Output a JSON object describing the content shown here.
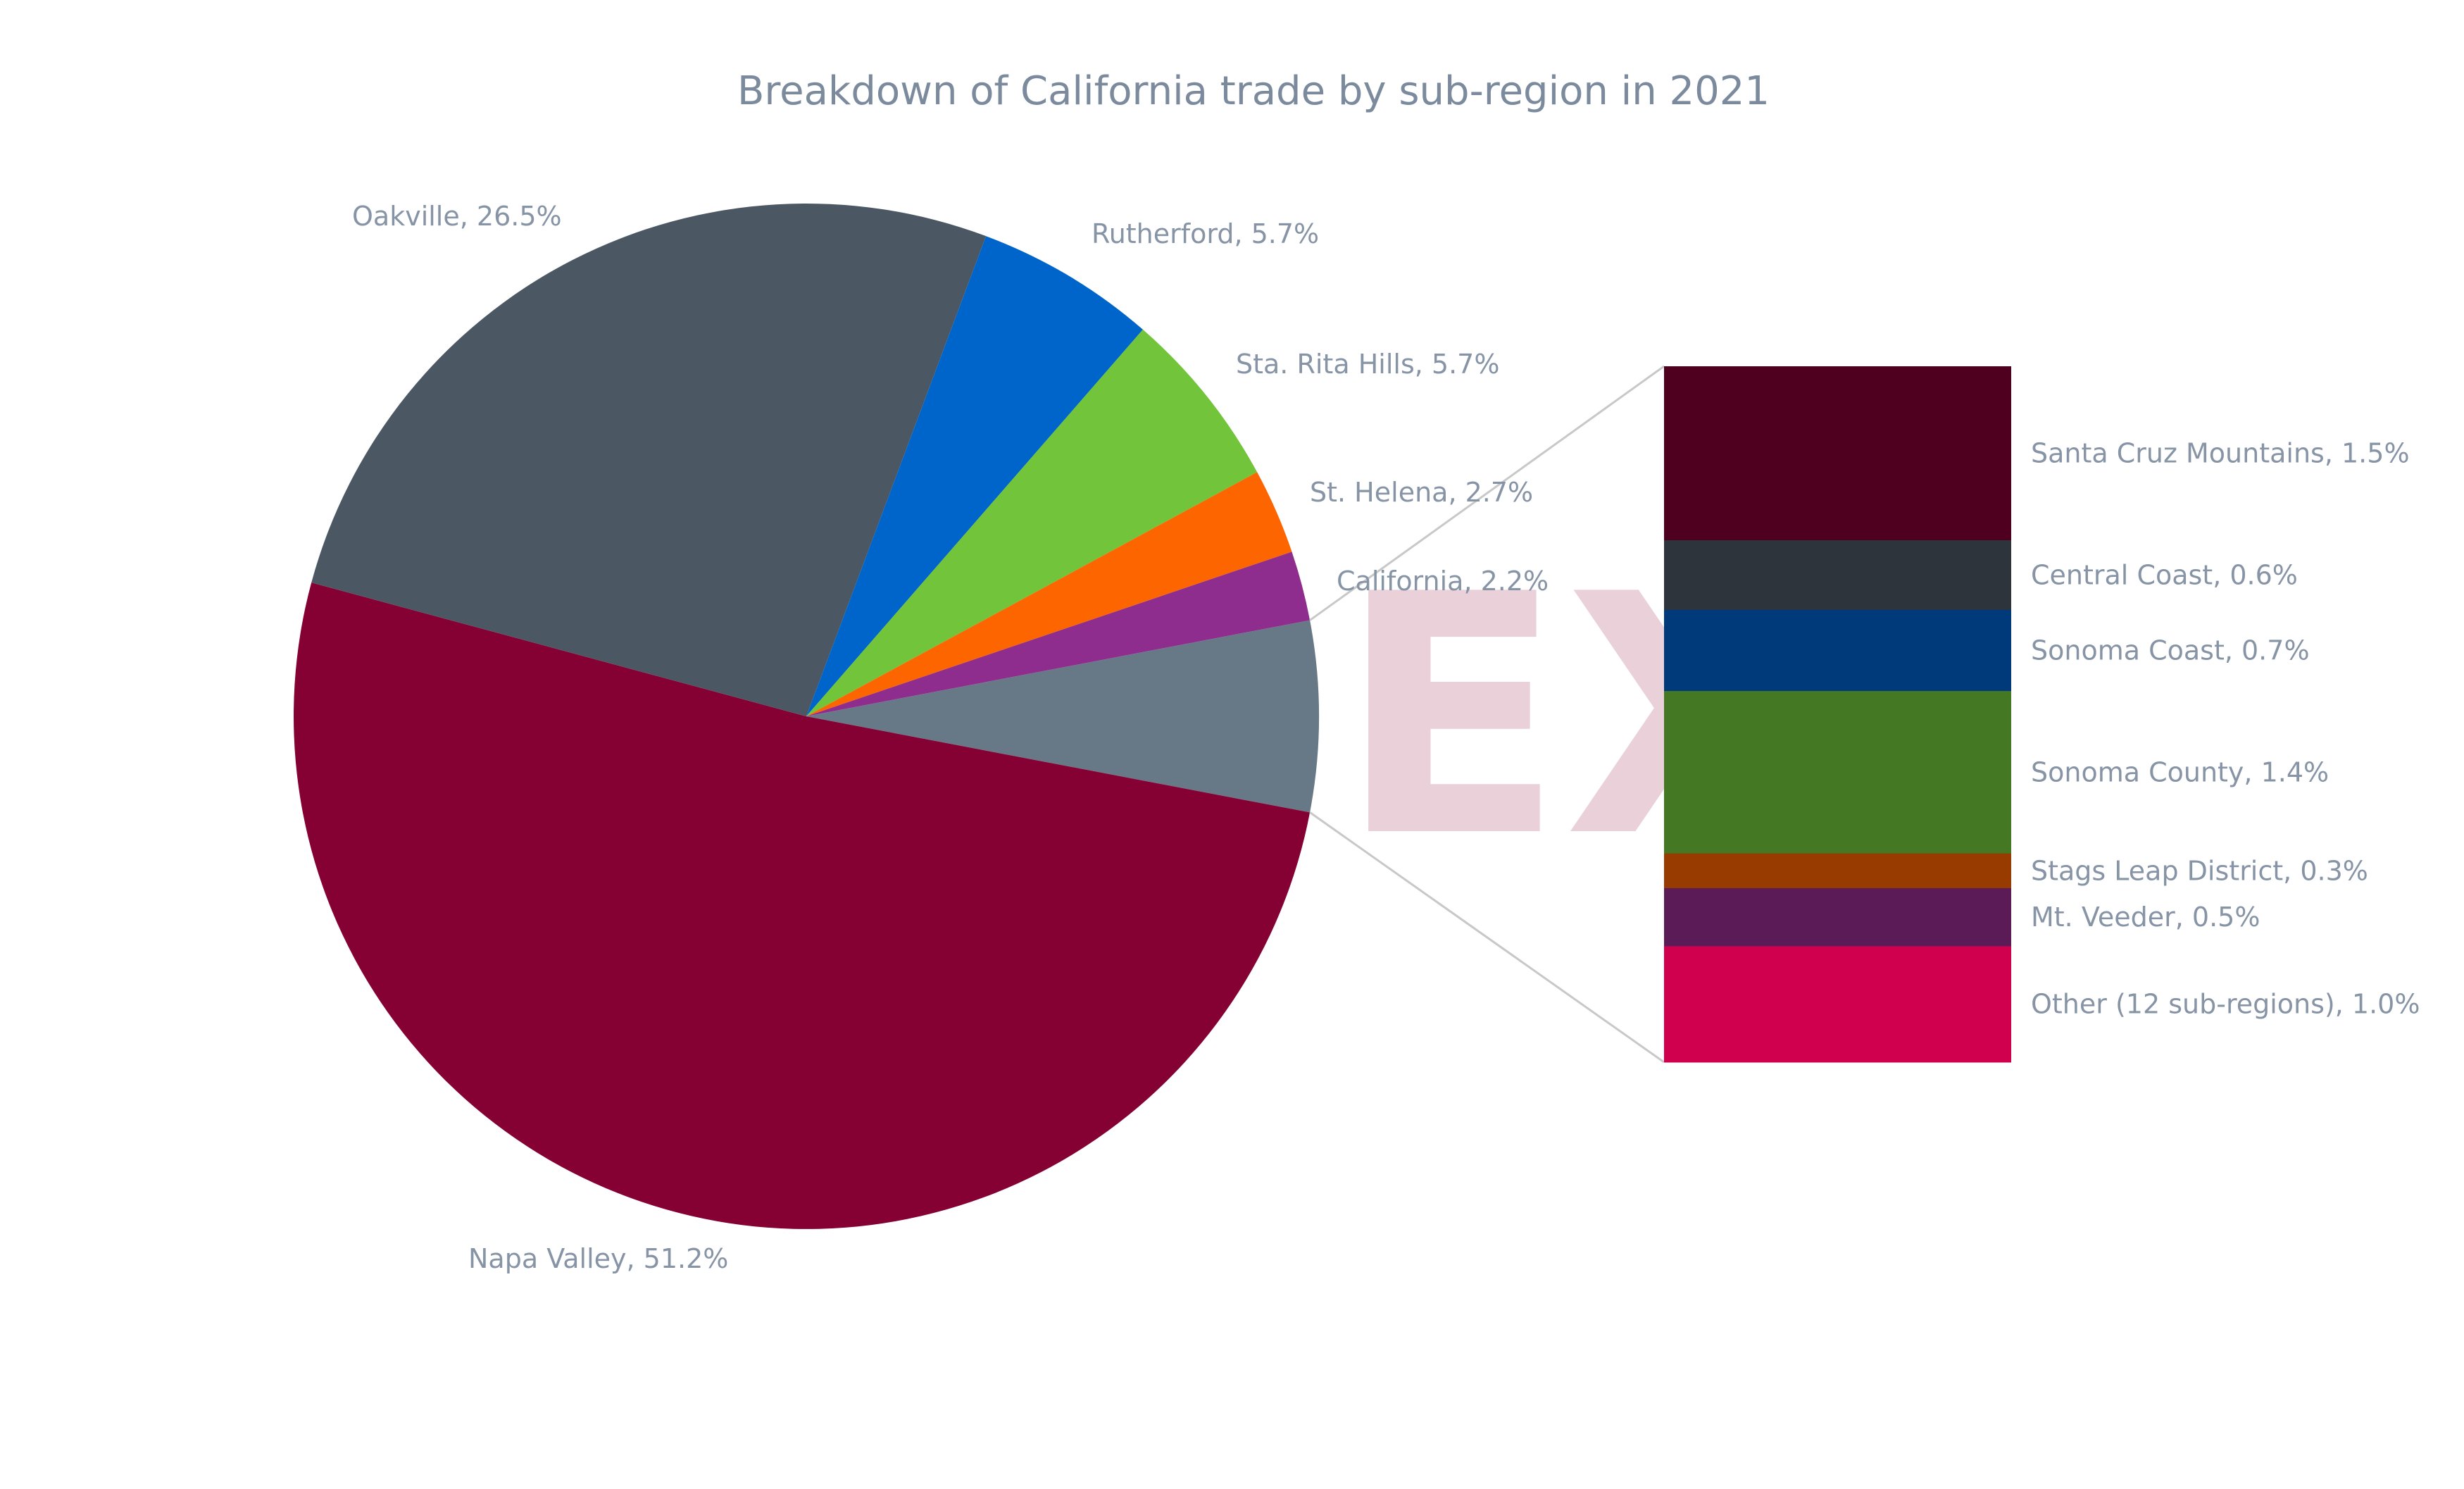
{
  "chart_data": {
    "type": "pie",
    "title": "Breakdown of California trade by sub-region in 2021",
    "slices": [
      {
        "label": "Napa Valley, 51.2%",
        "value": 51.2,
        "color": "#850033"
      },
      {
        "label": "Oakville, 26.5%",
        "value": 26.5,
        "color": "#4b5864"
      },
      {
        "label": "Rutherford, 5.7%",
        "value": 5.7,
        "color": "#0065cb"
      },
      {
        "label": "Sta. Rita Hills, 5.7%",
        "value": 5.7,
        "color": "#72c53a"
      },
      {
        "label": "St. Helena, 2.7%",
        "value": 2.7,
        "color": "#fd6500"
      },
      {
        "label": "California, 2.2%",
        "value": 2.2,
        "color": "#8e2d8d"
      },
      {
        "label": "",
        "value": 6.0,
        "color": "#677987"
      }
    ],
    "breakdown": [
      {
        "label": "Santa Cruz Mountains, 1.5%",
        "value": 1.5,
        "color": "#4f001e"
      },
      {
        "label": "Central Coast, 0.6%",
        "value": 0.6,
        "color": "#2d343c"
      },
      {
        "label": "Sonoma Coast, 0.7%",
        "value": 0.7,
        "color": "#003a7a"
      },
      {
        "label": "Sonoma County, 1.4%",
        "value": 1.4,
        "color": "#457823"
      },
      {
        "label": "Stags Leap District, 0.3%",
        "value": 0.3,
        "color": "#983b00"
      },
      {
        "label": "Mt. Veeder, 0.5%",
        "value": 0.5,
        "color": "#5a1b57"
      },
      {
        "label": "Other (12 sub-regions), 1.0%",
        "value": 1.0,
        "color": "#d1004f"
      }
    ]
  },
  "watermark": "EX"
}
